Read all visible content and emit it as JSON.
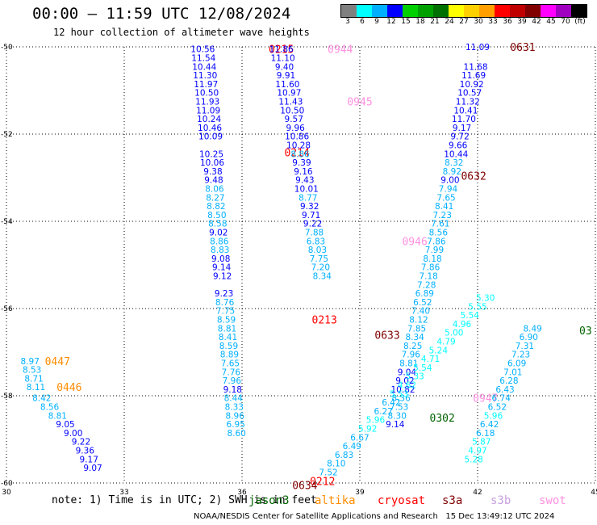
{
  "header": {
    "title": "00:00 – 11:59 UTC 12/08/2024",
    "subtitle": "12 hour collection of altimeter wave heights"
  },
  "colorbar": {
    "unit_label": "(ft)",
    "labels": [
      "3",
      "6",
      "9",
      "12",
      "15",
      "18",
      "21",
      "24",
      "27",
      "30",
      "33",
      "36",
      "39",
      "42",
      "45",
      "70"
    ],
    "colors": [
      "#808080",
      "#00ffff",
      "#00b0ff",
      "#0000ff",
      "#00d000",
      "#00a000",
      "#007000",
      "#ffff00",
      "#ffd000",
      "#ffa000",
      "#ff0000",
      "#c00000",
      "#800000",
      "#ff00ff",
      "#a000c0",
      "#000000"
    ]
  },
  "bottom": {
    "note": "note: 1) Time is in UTC; 2) SWH is in feet",
    "satellites": [
      {
        "name": "jason3",
        "color": "#006400"
      },
      {
        "name": "altika",
        "color": "#ff8c00"
      },
      {
        "name": "cryosat",
        "color": "#ff0000"
      },
      {
        "name": "s3a",
        "color": "#800000"
      },
      {
        "name": "s3b",
        "color": "#c8a0e0"
      },
      {
        "name": "swot",
        "color": "#ff90e0"
      }
    ],
    "credit": "NOAA/NESDIS Center for Satellite Applications and Research   15 Dec 13:49:12 UTC 2024"
  },
  "chart_data": {
    "type": "scatter",
    "title": "00:00 – 11:59 UTC 12/08/2024",
    "subtitle": "12 hour collection of altimeter wave heights",
    "xlabel": "",
    "ylabel": "",
    "xlim": [
      30,
      45
    ],
    "ylim": [
      -60,
      -50
    ],
    "x_ticks": [
      30,
      33,
      36,
      39,
      42,
      45
    ],
    "y_ticks": [
      -50,
      -52,
      -54,
      -56,
      -58,
      -60
    ],
    "grid": true,
    "units": "ft",
    "series": [
      {
        "name": "cryosat",
        "color": "#ff0000",
        "labels": [
          {
            "text": "0215",
            "x": 37.0,
            "y": -50.05
          },
          {
            "text": "0214",
            "x": 37.4,
            "y": -52.42
          },
          {
            "text": "0213",
            "x": 38.1,
            "y": -56.25
          },
          {
            "text": "0212",
            "x": 38.05,
            "y": -59.95
          }
        ],
        "points": [
          {
            "x": 35.0,
            "y": -50.05,
            "v": 10.56
          },
          {
            "x": 35.02,
            "y": -50.25,
            "v": 11.54
          },
          {
            "x": 35.04,
            "y": -50.45,
            "v": 10.44
          },
          {
            "x": 35.06,
            "y": -50.65,
            "v": 11.3
          },
          {
            "x": 35.08,
            "y": -50.85,
            "v": 11.97
          },
          {
            "x": 35.1,
            "y": -51.05,
            "v": 10.5
          },
          {
            "x": 35.12,
            "y": -51.25,
            "v": 11.93
          },
          {
            "x": 35.14,
            "y": -51.45,
            "v": 11.09
          },
          {
            "x": 35.16,
            "y": -51.65,
            "v": 10.24
          },
          {
            "x": 35.18,
            "y": -51.85,
            "v": 10.46
          },
          {
            "x": 35.2,
            "y": -52.05,
            "v": 10.09
          },
          {
            "x": 35.22,
            "y": -52.45,
            "v": 10.25
          },
          {
            "x": 35.24,
            "y": -52.65,
            "v": 10.06
          },
          {
            "x": 35.26,
            "y": -52.85,
            "v": 9.38
          },
          {
            "x": 35.28,
            "y": -53.05,
            "v": 9.48
          },
          {
            "x": 35.3,
            "y": -53.25,
            "v": 8.06
          },
          {
            "x": 35.32,
            "y": -53.45,
            "v": 8.27
          },
          {
            "x": 35.34,
            "y": -53.65,
            "v": 8.82
          },
          {
            "x": 35.36,
            "y": -53.85,
            "v": 8.5
          },
          {
            "x": 35.38,
            "y": -54.05,
            "v": 8.58
          },
          {
            "x": 35.4,
            "y": -54.25,
            "v": 9.02
          },
          {
            "x": 35.42,
            "y": -54.45,
            "v": 8.86
          },
          {
            "x": 35.44,
            "y": -54.65,
            "v": 8.83
          },
          {
            "x": 35.46,
            "y": -54.85,
            "v": 9.08
          },
          {
            "x": 35.48,
            "y": -55.05,
            "v": 9.14
          },
          {
            "x": 35.5,
            "y": -55.25,
            "v": 9.12
          },
          {
            "x": 35.54,
            "y": -55.65,
            "v": 9.23
          },
          {
            "x": 35.56,
            "y": -55.85,
            "v": 8.76
          },
          {
            "x": 35.58,
            "y": -56.05,
            "v": 7.75
          },
          {
            "x": 35.6,
            "y": -56.25,
            "v": 8.59
          },
          {
            "x": 35.62,
            "y": -56.45,
            "v": 8.81
          },
          {
            "x": 35.64,
            "y": -56.65,
            "v": 8.41
          },
          {
            "x": 35.66,
            "y": -56.85,
            "v": 8.59
          },
          {
            "x": 35.68,
            "y": -57.05,
            "v": 8.89
          },
          {
            "x": 35.7,
            "y": -57.25,
            "v": 7.65
          },
          {
            "x": 35.72,
            "y": -57.45,
            "v": 7.76
          },
          {
            "x": 35.74,
            "y": -57.65,
            "v": 7.96
          },
          {
            "x": 35.76,
            "y": -57.85,
            "v": 9.18
          },
          {
            "x": 35.78,
            "y": -58.05,
            "v": 8.44
          },
          {
            "x": 35.8,
            "y": -58.25,
            "v": 8.33
          },
          {
            "x": 35.82,
            "y": -58.45,
            "v": 8.96
          },
          {
            "x": 35.84,
            "y": -58.65,
            "v": 6.95
          },
          {
            "x": 35.86,
            "y": -58.85,
            "v": 8.6
          }
        ]
      },
      {
        "name": "swot",
        "color": "#ff90e0",
        "labels": [
          {
            "text": "0944",
            "x": 38.5,
            "y": -50.05
          },
          {
            "text": "0945",
            "x": 39.0,
            "y": -51.25
          },
          {
            "text": "0946",
            "x": 40.4,
            "y": -54.45
          },
          {
            "text": "0947",
            "x": 42.2,
            "y": -58.05
          }
        ],
        "points": [
          {
            "x": 37.0,
            "y": -50.05,
            "v": 11.86
          },
          {
            "x": 37.04,
            "y": -50.25,
            "v": 11.1
          },
          {
            "x": 37.08,
            "y": -50.45,
            "v": 9.4
          },
          {
            "x": 37.12,
            "y": -50.65,
            "v": 9.91
          },
          {
            "x": 37.16,
            "y": -50.85,
            "v": 11.6
          },
          {
            "x": 37.2,
            "y": -51.05,
            "v": 10.97
          },
          {
            "x": 37.24,
            "y": -51.25,
            "v": 11.43
          },
          {
            "x": 37.28,
            "y": -51.45,
            "v": 10.5
          },
          {
            "x": 37.32,
            "y": -51.65,
            "v": 9.57
          },
          {
            "x": 37.36,
            "y": -51.85,
            "v": 9.96
          },
          {
            "x": 37.4,
            "y": -52.05,
            "v": 10.86
          },
          {
            "x": 37.44,
            "y": -52.25,
            "v": 10.28
          },
          {
            "x": 37.48,
            "y": -52.45,
            "v": 8.86
          },
          {
            "x": 37.52,
            "y": -52.65,
            "v": 9.39
          },
          {
            "x": 37.56,
            "y": -52.85,
            "v": 9.16
          },
          {
            "x": 37.6,
            "y": -53.05,
            "v": 9.43
          },
          {
            "x": 37.64,
            "y": -53.25,
            "v": 10.01
          },
          {
            "x": 37.68,
            "y": -53.45,
            "v": 8.77
          },
          {
            "x": 37.72,
            "y": -53.65,
            "v": 9.32
          },
          {
            "x": 37.76,
            "y": -53.85,
            "v": 9.71
          },
          {
            "x": 37.8,
            "y": -54.05,
            "v": 9.22
          },
          {
            "x": 37.84,
            "y": -54.25,
            "v": 7.88
          },
          {
            "x": 37.88,
            "y": -54.45,
            "v": 6.83
          },
          {
            "x": 37.92,
            "y": -54.65,
            "v": 8.03
          },
          {
            "x": 37.96,
            "y": -54.85,
            "v": 7.75
          },
          {
            "x": 38.0,
            "y": -55.05,
            "v": 7.2
          },
          {
            "x": 38.04,
            "y": -55.25,
            "v": 8.34
          }
        ]
      },
      {
        "name": "s3a",
        "color": "#800000",
        "labels": [
          {
            "text": "0631",
            "x": 43.15,
            "y": -50.0
          },
          {
            "text": "0632",
            "x": 41.9,
            "y": -52.95
          },
          {
            "text": "0633",
            "x": 39.7,
            "y": -56.6
          },
          {
            "text": "0634",
            "x": 37.6,
            "y": -60.05
          }
        ],
        "points": [
          {
            "x": 42.0,
            "y": -50.0,
            "v": 11.09
          },
          {
            "x": 41.95,
            "y": -50.45,
            "v": 11.68
          },
          {
            "x": 41.9,
            "y": -50.65,
            "v": 11.69
          },
          {
            "x": 41.85,
            "y": -50.85,
            "v": 10.92
          },
          {
            "x": 41.8,
            "y": -51.05,
            "v": 10.57
          },
          {
            "x": 41.75,
            "y": -51.25,
            "v": 11.32
          },
          {
            "x": 41.7,
            "y": -51.45,
            "v": 10.41
          },
          {
            "x": 41.65,
            "y": -51.65,
            "v": 11.7
          },
          {
            "x": 41.6,
            "y": -51.85,
            "v": 9.17
          },
          {
            "x": 41.55,
            "y": -52.05,
            "v": 9.72
          },
          {
            "x": 41.5,
            "y": -52.25,
            "v": 9.66
          },
          {
            "x": 41.45,
            "y": -52.45,
            "v": 10.44
          },
          {
            "x": 41.4,
            "y": -52.65,
            "v": 8.32
          },
          {
            "x": 41.35,
            "y": -52.85,
            "v": 8.92
          },
          {
            "x": 41.3,
            "y": -53.05,
            "v": 9.0
          },
          {
            "x": 41.25,
            "y": -53.25,
            "v": 7.94
          },
          {
            "x": 41.2,
            "y": -53.45,
            "v": 7.65
          },
          {
            "x": 41.15,
            "y": -53.65,
            "v": 8.41
          },
          {
            "x": 41.1,
            "y": -53.85,
            "v": 7.23
          },
          {
            "x": 41.05,
            "y": -54.05,
            "v": 7.61
          },
          {
            "x": 41.0,
            "y": -54.25,
            "v": 8.56
          },
          {
            "x": 40.95,
            "y": -54.45,
            "v": 7.86
          },
          {
            "x": 40.9,
            "y": -54.65,
            "v": 7.99
          },
          {
            "x": 40.85,
            "y": -54.85,
            "v": 8.18
          },
          {
            "x": 40.8,
            "y": -55.05,
            "v": 7.86
          },
          {
            "x": 40.75,
            "y": -55.25,
            "v": 7.18
          },
          {
            "x": 40.7,
            "y": -55.45,
            "v": 7.28
          },
          {
            "x": 40.65,
            "y": -55.65,
            "v": 6.89
          },
          {
            "x": 40.6,
            "y": -55.85,
            "v": 6.52
          },
          {
            "x": 40.55,
            "y": -56.05,
            "v": 7.4
          },
          {
            "x": 40.5,
            "y": -56.25,
            "v": 8.12
          },
          {
            "x": 40.45,
            "y": -56.45,
            "v": 7.85
          },
          {
            "x": 40.4,
            "y": -56.65,
            "v": 8.34
          },
          {
            "x": 40.35,
            "y": -56.85,
            "v": 8.25
          },
          {
            "x": 40.3,
            "y": -57.05,
            "v": 7.96
          },
          {
            "x": 40.25,
            "y": -57.25,
            "v": 8.81
          },
          {
            "x": 40.2,
            "y": -57.45,
            "v": 9.04
          },
          {
            "x": 40.15,
            "y": -57.65,
            "v": 9.02
          },
          {
            "x": 40.1,
            "y": -57.85,
            "v": 10.82
          },
          {
            "x": 40.05,
            "y": -58.05,
            "v": 8.36
          },
          {
            "x": 40.0,
            "y": -58.25,
            "v": 7.53
          },
          {
            "x": 39.95,
            "y": -58.45,
            "v": 8.3
          },
          {
            "x": 39.9,
            "y": -58.65,
            "v": 9.14
          }
        ]
      },
      {
        "name": "s3b",
        "color": "#c8a0e0",
        "labels": [],
        "points": [
          {
            "x": 43.4,
            "y": -56.45,
            "v": 8.49
          },
          {
            "x": 43.3,
            "y": -56.65,
            "v": 6.9
          },
          {
            "x": 43.2,
            "y": -56.85,
            "v": 7.31
          },
          {
            "x": 43.1,
            "y": -57.05,
            "v": 7.23
          },
          {
            "x": 43.0,
            "y": -57.25,
            "v": 6.09
          },
          {
            "x": 42.9,
            "y": -57.45,
            "v": 7.01
          },
          {
            "x": 42.8,
            "y": -57.65,
            "v": 6.28
          },
          {
            "x": 42.7,
            "y": -57.85,
            "v": 6.43
          },
          {
            "x": 42.6,
            "y": -58.05,
            "v": 6.74
          },
          {
            "x": 42.5,
            "y": -58.25,
            "v": 6.52
          },
          {
            "x": 42.4,
            "y": -58.45,
            "v": 5.96
          },
          {
            "x": 42.3,
            "y": -58.65,
            "v": 6.42
          },
          {
            "x": 42.2,
            "y": -58.85,
            "v": 6.18
          },
          {
            "x": 42.1,
            "y": -59.05,
            "v": 5.87
          },
          {
            "x": 42.0,
            "y": -59.25,
            "v": 4.97
          },
          {
            "x": 41.9,
            "y": -59.45,
            "v": 5.28
          }
        ]
      },
      {
        "name": "jason3",
        "color": "#006400",
        "labels": [
          {
            "text": "0302",
            "x": 41.1,
            "y": -58.5
          },
          {
            "text": "03",
            "x": 44.75,
            "y": -56.5
          }
        ],
        "points": [
          {
            "x": 38.2,
            "y": -59.75,
            "v": 7.52
          },
          {
            "x": 38.4,
            "y": -59.55,
            "v": 8.1
          },
          {
            "x": 38.6,
            "y": -59.35,
            "v": 6.83
          },
          {
            "x": 38.8,
            "y": -59.15,
            "v": 6.49
          },
          {
            "x": 39.0,
            "y": -58.95,
            "v": 6.67
          },
          {
            "x": 39.2,
            "y": -58.75,
            "v": 5.92
          },
          {
            "x": 39.4,
            "y": -58.55,
            "v": 5.96
          },
          {
            "x": 39.6,
            "y": -58.35,
            "v": 6.27
          },
          {
            "x": 39.8,
            "y": -58.15,
            "v": 6.42
          },
          {
            "x": 40.0,
            "y": -57.95,
            "v": 5.53
          },
          {
            "x": 40.2,
            "y": -57.75,
            "v": 4.62
          },
          {
            "x": 40.4,
            "y": -57.55,
            "v": 5.33
          },
          {
            "x": 40.6,
            "y": -57.35,
            "v": 5.54
          },
          {
            "x": 40.8,
            "y": -57.15,
            "v": 4.71
          },
          {
            "x": 41.0,
            "y": -56.95,
            "v": 5.24
          },
          {
            "x": 41.2,
            "y": -56.75,
            "v": 4.79
          },
          {
            "x": 41.4,
            "y": -56.55,
            "v": 5.0
          },
          {
            "x": 41.6,
            "y": -56.35,
            "v": 4.96
          },
          {
            "x": 41.8,
            "y": -56.15,
            "v": 5.54
          },
          {
            "x": 42.0,
            "y": -55.95,
            "v": 5.55
          },
          {
            "x": 42.2,
            "y": -55.75,
            "v": 5.3
          }
        ]
      },
      {
        "name": "altika",
        "color": "#ff8c00",
        "labels": [
          {
            "text": "0447",
            "x": 31.3,
            "y": -57.2
          },
          {
            "text": "0446",
            "x": 31.6,
            "y": -57.8
          }
        ],
        "points": [
          {
            "x": 30.6,
            "y": -57.2,
            "v": 8.97
          },
          {
            "x": 30.65,
            "y": -57.4,
            "v": 8.53
          },
          {
            "x": 30.7,
            "y": -57.6,
            "v": 8.71
          },
          {
            "x": 30.75,
            "y": -57.8,
            "v": 8.11
          },
          {
            "x": 30.9,
            "y": -58.05,
            "v": 8.42
          },
          {
            "x": 31.1,
            "y": -58.25,
            "v": 8.56
          },
          {
            "x": 31.3,
            "y": -58.45,
            "v": 8.81
          },
          {
            "x": 31.5,
            "y": -58.65,
            "v": 9.05
          },
          {
            "x": 31.7,
            "y": -58.85,
            "v": 9.0
          },
          {
            "x": 31.9,
            "y": -59.05,
            "v": 9.22
          },
          {
            "x": 32.0,
            "y": -59.25,
            "v": 9.36
          },
          {
            "x": 32.1,
            "y": -59.45,
            "v": 9.17
          },
          {
            "x": 32.2,
            "y": -59.65,
            "v": 9.07
          }
        ]
      }
    ]
  }
}
